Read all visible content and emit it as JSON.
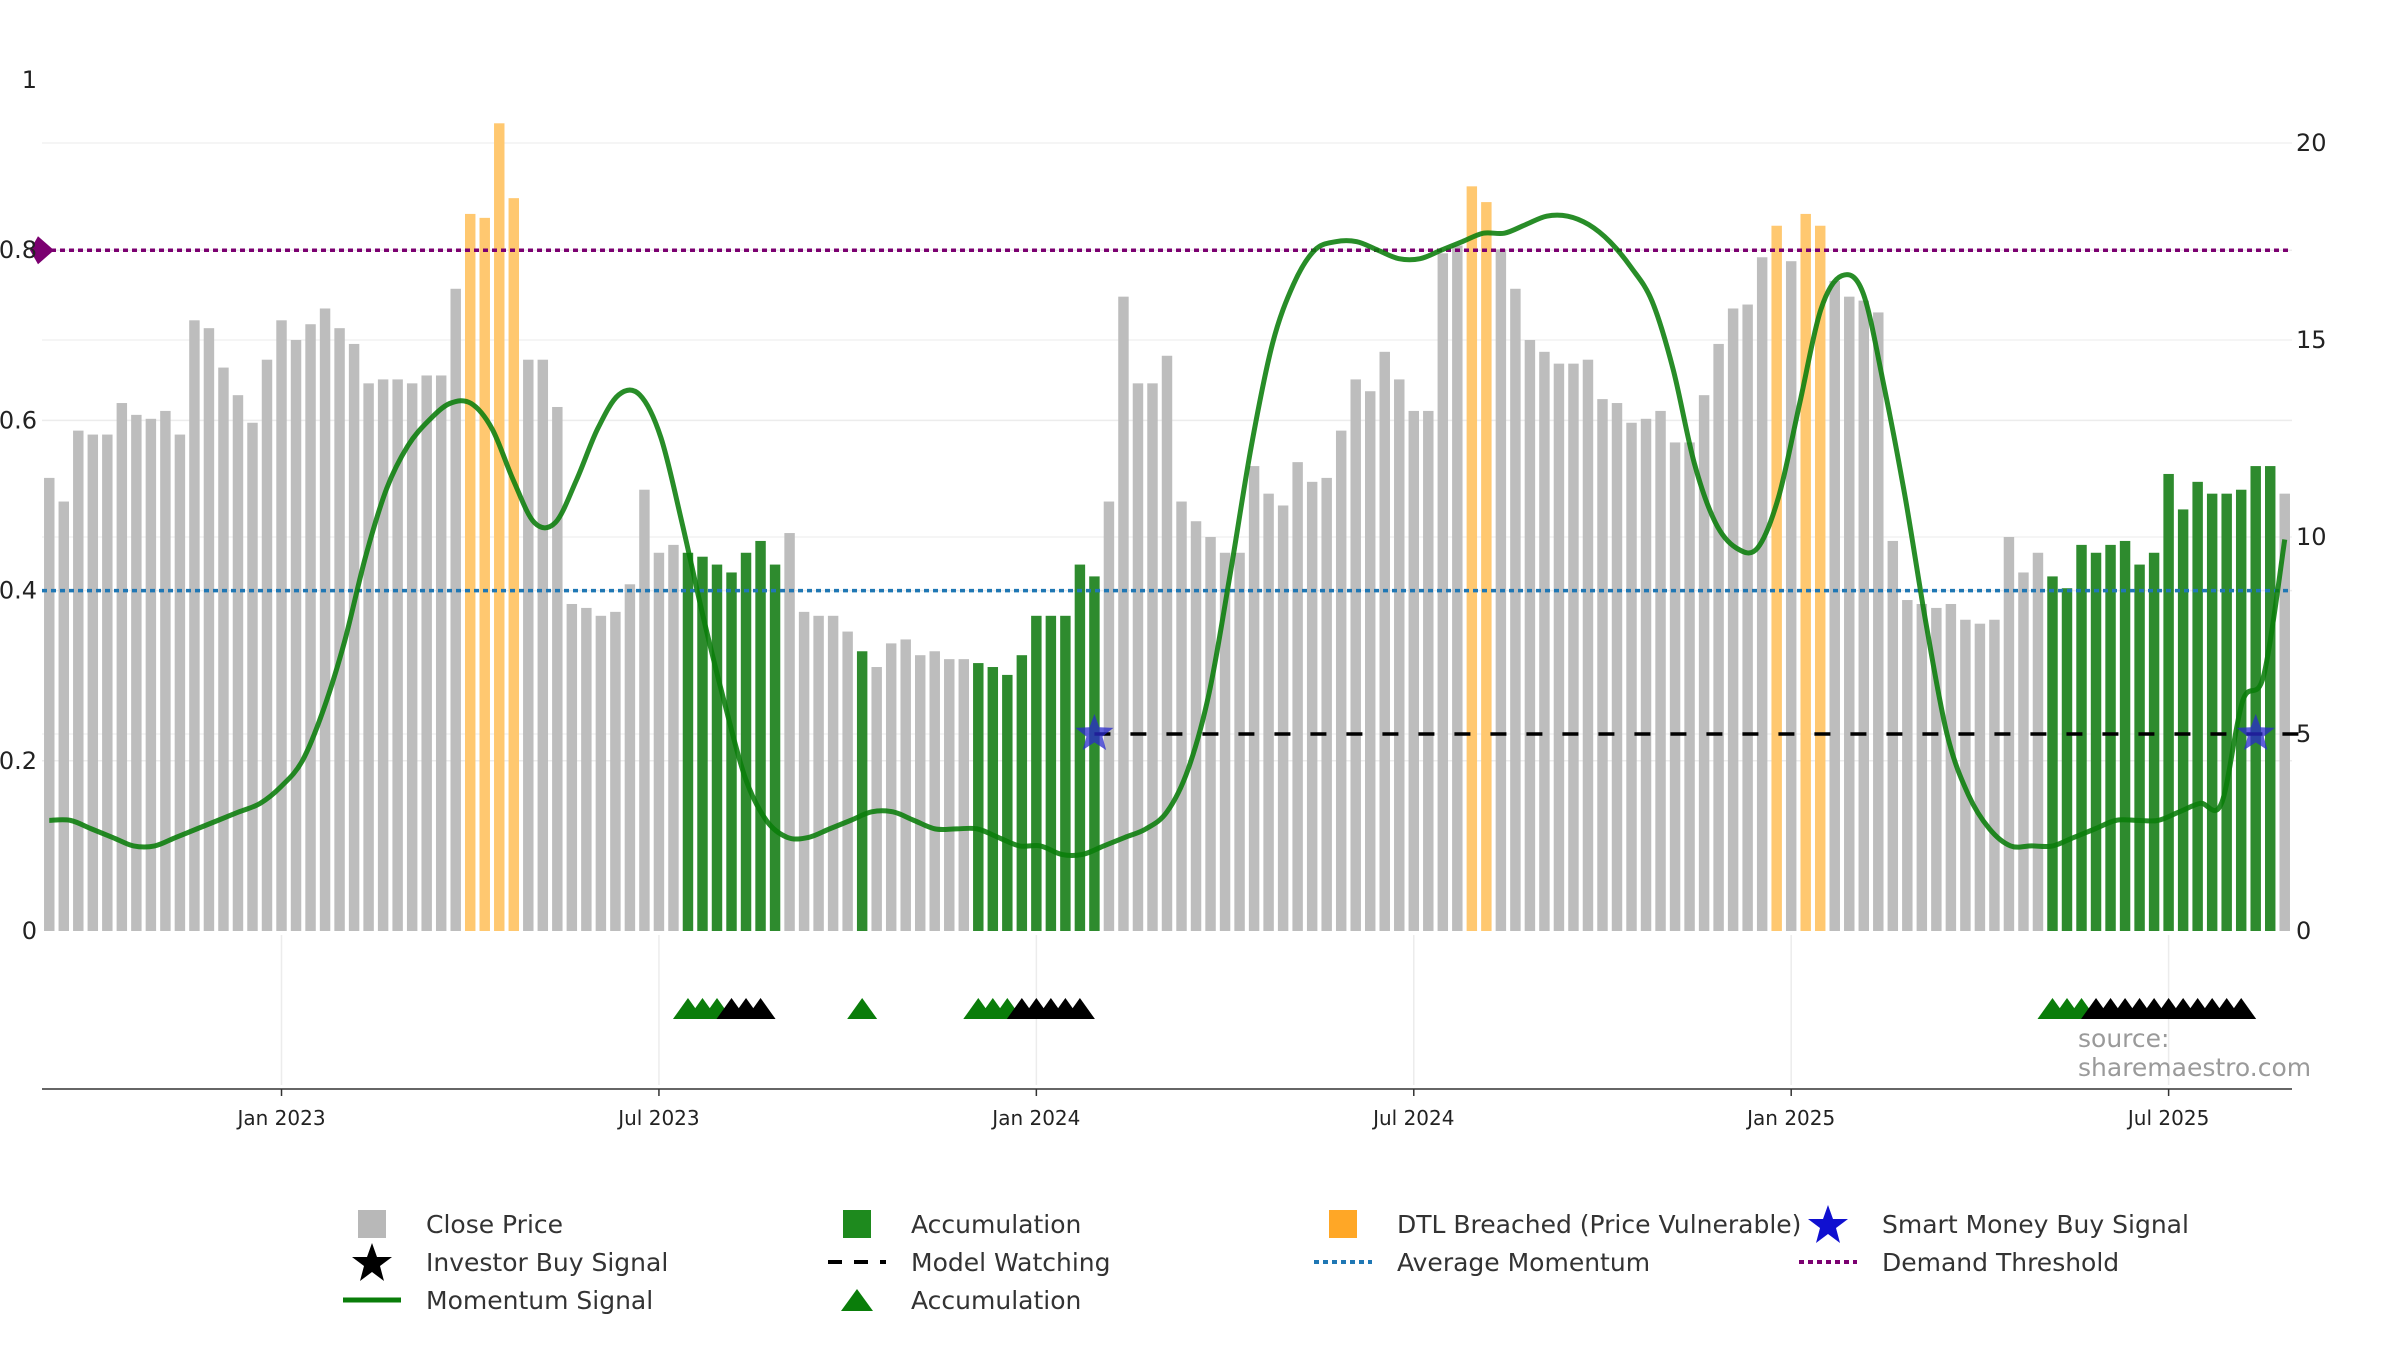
{
  "source_text": "source: sharemaestro.com",
  "legend": [
    {
      "key": "close",
      "label": "Close Price",
      "symbol": "square",
      "color": "#b8b8b8"
    },
    {
      "key": "investor",
      "label": "Investor Buy Signal",
      "symbol": "star",
      "color": "#000000"
    },
    {
      "key": "momentum",
      "label": "Momentum Signal",
      "symbol": "line",
      "color": "#0a7d0a"
    },
    {
      "key": "accum_bar",
      "label": "Accumulation",
      "symbol": "square",
      "color": "#1e8a1e"
    },
    {
      "key": "watching",
      "label": "Model Watching",
      "symbol": "dashed",
      "color": "#000000"
    },
    {
      "key": "accum_tri",
      "label": "Accumulation",
      "symbol": "triangle",
      "color": "#0a7d0a"
    },
    {
      "key": "dtl",
      "label": "DTL Breached (Price Vulnerable)",
      "symbol": "square",
      "color": "#ffa726"
    },
    {
      "key": "avg",
      "label": "Average Momentum",
      "symbol": "dotted",
      "color": "#1f77b4"
    },
    {
      "key": "smart",
      "label": "Smart Money Buy Signal",
      "symbol": "star",
      "color": "#1010d0"
    },
    {
      "key": "demand",
      "label": "Demand Threshold",
      "symbol": "dotted",
      "color": "#7b0070"
    }
  ],
  "chart_data": {
    "type": "bar",
    "left_axis": {
      "min": 0,
      "max": 1,
      "ticks": [
        "0",
        "0.2",
        "0.4",
        "0.6",
        "0.8",
        "1"
      ]
    },
    "right_axis": {
      "min": 0,
      "max": 20,
      "ticks": [
        "0",
        "5",
        "10",
        "15",
        "20"
      ]
    },
    "x_ticks": [
      "Jan 2023",
      "Jul 2023",
      "Jan 2024",
      "Jul 2024",
      "Jan 2025",
      "Jul 2025"
    ],
    "colors": {
      "close": "#bdbdbd",
      "accumulation": "#2e8b2e",
      "dtl": "#ffc870",
      "momentum": "#0a7d0a",
      "avg": "#1f77b4",
      "demand": "#7b0070",
      "smart": "#2a2acc"
    },
    "close_prices": [
      11.5,
      10.9,
      12.7,
      12.6,
      12.6,
      13.4,
      13.1,
      13.0,
      13.2,
      12.6,
      15.5,
      15.3,
      14.3,
      13.6,
      12.9,
      14.5,
      15.5,
      15.0,
      15.4,
      15.8,
      15.3,
      14.9,
      13.9,
      14.0,
      14.0,
      13.9,
      14.1,
      14.1,
      16.3,
      18.2,
      18.1,
      20.5,
      18.6,
      14.5,
      14.5,
      13.3,
      8.3,
      8.2,
      8.0,
      8.1,
      8.8,
      11.2,
      9.6,
      9.8,
      9.6,
      9.5,
      9.3,
      9.1,
      9.6,
      9.9,
      9.3,
      10.1,
      8.1,
      8.0,
      8.0,
      7.6,
      7.1,
      6.7,
      7.3,
      7.4,
      7.0,
      7.1,
      6.9,
      6.9,
      6.8,
      6.7,
      6.5,
      7.0,
      8.0,
      8.0,
      8.0,
      9.3,
      9.0,
      10.9,
      16.1,
      13.9,
      13.9,
      14.6,
      10.9,
      10.4,
      10.0,
      9.6,
      9.6,
      11.8,
      11.1,
      10.8,
      11.9,
      11.4,
      11.5,
      12.7,
      14.0,
      13.7,
      14.7,
      14.0,
      13.2,
      13.2,
      17.2,
      17.4,
      18.9,
      18.5,
      17.3,
      16.3,
      15.0,
      14.7,
      14.4,
      14.4,
      14.5,
      13.5,
      13.4,
      12.9,
      13.0,
      13.2,
      12.4,
      12.4,
      13.6,
      14.9,
      15.8,
      15.9,
      17.1,
      17.9,
      17.0,
      18.2,
      17.9,
      16.5,
      16.1,
      16.0,
      15.7,
      9.9,
      8.4,
      8.3,
      8.2,
      8.3,
      7.9,
      7.8,
      7.9,
      10.0,
      9.1,
      9.6,
      9.0,
      8.7,
      9.8,
      9.6,
      9.8,
      9.9,
      9.3,
      9.6,
      11.6,
      10.7,
      11.4,
      11.1,
      11.1,
      11.2,
      11.8,
      11.8,
      11.1
    ],
    "highlights": [
      {
        "type": "dtl",
        "range": [
          29,
          32
        ]
      },
      {
        "type": "accumulation",
        "range": [
          44,
          50
        ]
      },
      {
        "type": "accumulation",
        "range": [
          56,
          56
        ]
      },
      {
        "type": "accumulation",
        "range": [
          64,
          72
        ]
      },
      {
        "type": "dtl",
        "range": [
          98,
          99
        ]
      },
      {
        "type": "dtl",
        "range": [
          119,
          119
        ]
      },
      {
        "type": "dtl",
        "range": [
          121,
          122
        ]
      },
      {
        "type": "accumulation",
        "range": [
          138,
          153
        ]
      }
    ],
    "momentum": [
      0.13,
      0.13,
      0.12,
      0.11,
      0.1,
      0.1,
      0.11,
      0.12,
      0.13,
      0.14,
      0.15,
      0.17,
      0.2,
      0.26,
      0.34,
      0.44,
      0.52,
      0.57,
      0.6,
      0.62,
      0.62,
      0.59,
      0.53,
      0.48,
      0.48,
      0.53,
      0.59,
      0.63,
      0.63,
      0.58,
      0.48,
      0.37,
      0.27,
      0.18,
      0.13,
      0.11,
      0.11,
      0.12,
      0.13,
      0.14,
      0.14,
      0.13,
      0.12,
      0.12,
      0.12,
      0.11,
      0.1,
      0.1,
      0.09,
      0.09,
      0.1,
      0.11,
      0.12,
      0.14,
      0.19,
      0.28,
      0.42,
      0.57,
      0.69,
      0.76,
      0.8,
      0.81,
      0.81,
      0.8,
      0.79,
      0.79,
      0.8,
      0.81,
      0.82,
      0.82,
      0.83,
      0.84,
      0.84,
      0.83,
      0.81,
      0.78,
      0.74,
      0.66,
      0.55,
      0.48,
      0.45,
      0.45,
      0.51,
      0.62,
      0.73,
      0.77,
      0.75,
      0.64,
      0.51,
      0.36,
      0.23,
      0.16,
      0.12,
      0.1,
      0.1,
      0.1,
      0.11,
      0.12,
      0.13,
      0.13,
      0.13,
      0.14,
      0.15,
      0.15,
      0.27,
      0.3,
      0.46
    ],
    "momentum_x": [
      0,
      1,
      2,
      3,
      4,
      5,
      6,
      7,
      8,
      9,
      10,
      11,
      12,
      13,
      14,
      15,
      16,
      17,
      18,
      19,
      20,
      21,
      22,
      23,
      24,
      25,
      26,
      27,
      28,
      29,
      30,
      31,
      32,
      33,
      34,
      35,
      36,
      37,
      38,
      39,
      40,
      41,
      42,
      43,
      44,
      45,
      46,
      47,
      48,
      49,
      50,
      51,
      52,
      53,
      54,
      55,
      56,
      57,
      58,
      59,
      60,
      61,
      62,
      63,
      64,
      65,
      66,
      67,
      68,
      69,
      70,
      71,
      72,
      73,
      74,
      75,
      76,
      77,
      78,
      79,
      80,
      81,
      82,
      83,
      84,
      85,
      86,
      87,
      88,
      89,
      90,
      91,
      92,
      93,
      94,
      95,
      96,
      97,
      98,
      99,
      100,
      101,
      102,
      103,
      104,
      105,
      106
    ],
    "average_momentum": 0.4,
    "demand_threshold": 0.8,
    "model_watching": {
      "value": 5,
      "from": 72,
      "to": 155
    },
    "smart_money_signals": [
      {
        "bar": 72,
        "value": 5
      },
      {
        "bar": 152,
        "value": 5
      }
    ],
    "accumulation_triangles": [
      44,
      45,
      46,
      56,
      64,
      65,
      66,
      138,
      139,
      140
    ],
    "investor_triangles": [
      47,
      48,
      49,
      67,
      68,
      69,
      70,
      71,
      141,
      142,
      143,
      144,
      145,
      146,
      147,
      148,
      149,
      150,
      151
    ]
  }
}
